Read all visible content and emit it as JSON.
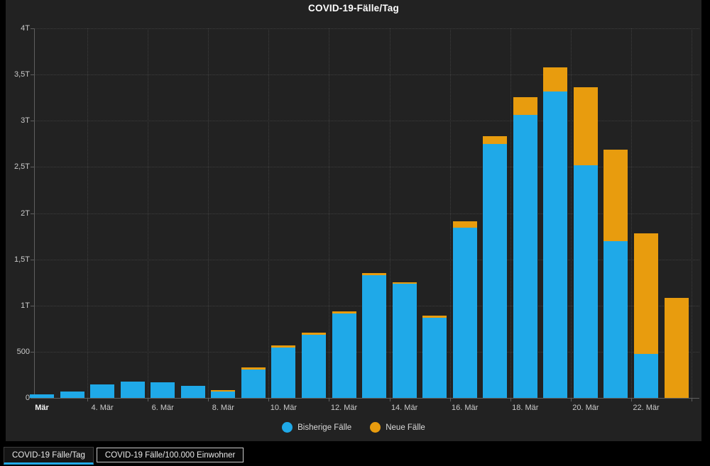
{
  "title": "COVID-19-Fälle/Tag",
  "accent_colors": {
    "blue": "#1FA9E8",
    "orange": "#E89C0E",
    "panel_bg": "#222222",
    "page_bg": "#000000"
  },
  "chart_data": {
    "type": "bar",
    "stacked": true,
    "title": "COVID-19-Fälle/Tag",
    "xlabel": "",
    "ylabel": "",
    "ylim": [
      0,
      4000
    ],
    "grid": "dotted",
    "legend_position": "bottom-center",
    "categories": [
      "2. Mär",
      "3. Mär",
      "4. Mär",
      "5. Mär",
      "6. Mär",
      "7. Mär",
      "8. Mär",
      "9. Mär",
      "10. Mär",
      "11. Mär",
      "12. Mär",
      "13. Mär",
      "14. Mär",
      "15. Mär",
      "16. Mär",
      "17. Mär",
      "18. Mär",
      "19. Mär",
      "20. Mär",
      "21. Mär",
      "22. Mär",
      "23. Mär"
    ],
    "series": [
      {
        "name": "Bisherige Fälle",
        "color": "#1FA9E8",
        "values": [
          40,
          70,
          145,
          175,
          170,
          130,
          70,
          305,
          545,
          685,
          910,
          1325,
          1235,
          865,
          1840,
          2745,
          3065,
          3320,
          2520,
          1700,
          475,
          0
        ]
      },
      {
        "name": "Neue Fälle",
        "color": "#E89C0E",
        "values": [
          0,
          0,
          0,
          0,
          0,
          0,
          15,
          25,
          20,
          25,
          25,
          25,
          15,
          25,
          70,
          85,
          190,
          260,
          845,
          990,
          1305,
          1080
        ]
      }
    ],
    "y_ticks": [
      {
        "value": 0,
        "label": "0"
      },
      {
        "value": 500,
        "label": "500"
      },
      {
        "value": 1000,
        "label": "1T"
      },
      {
        "value": 1500,
        "label": "1,5T"
      },
      {
        "value": 2000,
        "label": "2T"
      },
      {
        "value": 2500,
        "label": "2,5T"
      },
      {
        "value": 3000,
        "label": "3T"
      },
      {
        "value": 3500,
        "label": "3,5T"
      },
      {
        "value": 4000,
        "label": "4T"
      }
    ],
    "x_ticks": [
      {
        "index": 0,
        "label": "Mär",
        "bold": true
      },
      {
        "index": 2,
        "label": "4. Mär"
      },
      {
        "index": 4,
        "label": "6. Mär"
      },
      {
        "index": 6,
        "label": "8. Mär"
      },
      {
        "index": 8,
        "label": "10. Mär"
      },
      {
        "index": 10,
        "label": "12. Mär"
      },
      {
        "index": 12,
        "label": "14. Mär"
      },
      {
        "index": 14,
        "label": "16. Mär"
      },
      {
        "index": 16,
        "label": "18. Mär"
      },
      {
        "index": 18,
        "label": "20. Mär"
      },
      {
        "index": 20,
        "label": "22. Mär"
      }
    ]
  },
  "legend": [
    {
      "label": "Bisherige Fälle",
      "color": "#1FA9E8"
    },
    {
      "label": "Neue Fälle",
      "color": "#E89C0E"
    }
  ],
  "tabs": [
    {
      "label": "COVID-19 Fälle/Tag",
      "active": true
    },
    {
      "label": "COVID-19 Fälle/100.000 Einwohner",
      "active": false
    }
  ]
}
